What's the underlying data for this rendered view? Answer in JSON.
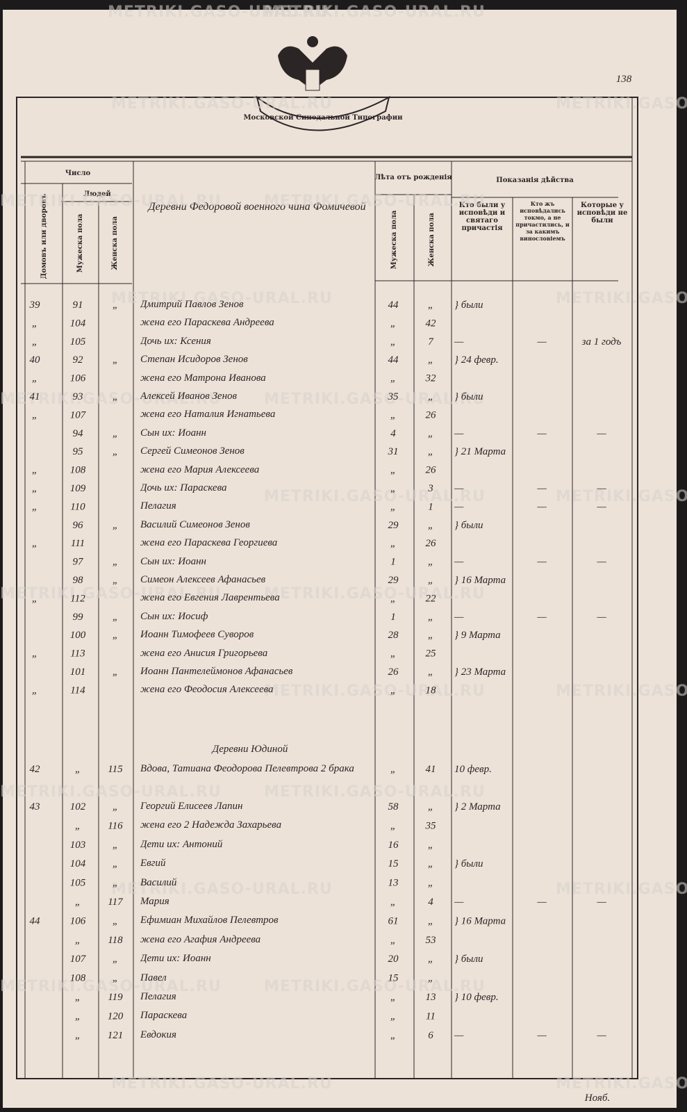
{
  "watermark": "METRIKI.GASO-URAL.RU",
  "page_number": "138",
  "emblem_ribbon": "Московской Синодальной Типографии",
  "header": {
    "number": "Число",
    "households": "Домовъ или дворовъ",
    "people": "Людей",
    "male": "Мужеска пола",
    "female": "Женска пола",
    "age": "Лѣта отъ рожденія",
    "age_male": "Мужеска пола",
    "age_female": "Женска пола",
    "action": "Показанія дѣйства",
    "confessed": "Кто были у исповѣди и святаго причастія",
    "not_communed": "Кто жъ исповѣдались токмо, а не причастились, и за какимъ винословіемъ",
    "absent": "Которые у исповѣди не были"
  },
  "section_title": "Деревни Федоровой военного чина Фомичевой",
  "rows": [
    {
      "no": "39",
      "m": "91",
      "f": "„",
      "name": "Дмитрий Павлов Зенов",
      "m_age": "44",
      "f_age": "„",
      "confessed": "} были"
    },
    {
      "no": "„",
      "m": "104",
      "name": "жена его Параскева Андреева",
      "m_age": "„",
      "f_age": "42"
    },
    {
      "no": "„",
      "m": "105",
      "name": "Дочь их: Ксения",
      "m_age": "„",
      "f_age": "7",
      "confessed": "—",
      "not_communed": "—",
      "absent": "за 1 годъ"
    },
    {
      "no": "40",
      "m": "92",
      "f": "„",
      "name": "Степан Исидоров Зенов",
      "m_age": "44",
      "f_age": "„",
      "confessed": "} 24 февр."
    },
    {
      "no": "„",
      "m": "106",
      "name": "жена его Матрона Иванова",
      "m_age": "„",
      "f_age": "32"
    },
    {
      "no": "41",
      "m": "93",
      "f": "„",
      "name": "Алексей Иванов Зенов",
      "m_age": "35",
      "f_age": "„",
      "confessed": "} были"
    },
    {
      "no": "„",
      "m": "107",
      "name": "жена его Наталия Игнатьева",
      "m_age": "„",
      "f_age": "26"
    },
    {
      "m": "94",
      "f": "„",
      "name": "Сын их: Иоанн",
      "m_age": "4",
      "f_age": "„",
      "confessed": "—",
      "not_communed": "—",
      "absent": "—"
    },
    {
      "m": "95",
      "f": "„",
      "name": "Сергей Симеонов Зенов",
      "m_age": "31",
      "f_age": "„",
      "confessed": "} 21 Марта"
    },
    {
      "no": "„",
      "m": "108",
      "name": "жена его Мария Алексеева",
      "m_age": "„",
      "f_age": "26"
    },
    {
      "no": "„",
      "m": "109",
      "name": "Дочь их: Параскева",
      "m_age": "„",
      "f_age": "3",
      "confessed": "—",
      "not_communed": "—",
      "absent": "—"
    },
    {
      "no": "„",
      "m": "110",
      "name": "Пелагия",
      "m_age": "„",
      "f_age": "1",
      "confessed": "—",
      "not_communed": "—",
      "absent": "—"
    },
    {
      "m": "96",
      "f": "„",
      "name": "Василий Симеонов Зенов",
      "m_age": "29",
      "f_age": "„",
      "confessed": "} были"
    },
    {
      "no": "„",
      "m": "111",
      "name": "жена его Параскева Георгиева",
      "m_age": "„",
      "f_age": "26"
    },
    {
      "m": "97",
      "f": "„",
      "name": "Сын их: Иоанн",
      "m_age": "1",
      "f_age": "„",
      "confessed": "—",
      "not_communed": "—",
      "absent": "—"
    },
    {
      "m": "98",
      "f": "„",
      "name": "Симеон Алексеев Афанасьев",
      "m_age": "29",
      "f_age": "„",
      "confessed": "} 16 Марта"
    },
    {
      "no": "„",
      "m": "112",
      "name": "жена его Евгения Лаврентьева",
      "m_age": "„",
      "f_age": "22"
    },
    {
      "m": "99",
      "f": "„",
      "name": "Сын их: Иосиф",
      "m_age": "1",
      "f_age": "„",
      "confessed": "—",
      "not_communed": "—",
      "absent": "—"
    },
    {
      "m": "100",
      "f": "„",
      "name": "Иоанн Тимофеев Суворов",
      "m_age": "28",
      "f_age": "„",
      "confessed": "} 9 Марта"
    },
    {
      "no": "„",
      "m": "113",
      "name": "жена его Анисия Григорьева",
      "m_age": "„",
      "f_age": "25"
    },
    {
      "m": "101",
      "f": "„",
      "name": "Иоанн Пантелеймонов Афанасьев",
      "m_age": "26",
      "f_age": "„",
      "confessed": "} 23 Марта"
    },
    {
      "no": "„",
      "m": "114",
      "name": "жена его Феодосия Алексеева",
      "m_age": "„",
      "f_age": "18"
    }
  ],
  "section2_title": "Деревни Юдиной",
  "rows2": [
    {
      "no": "42",
      "m": "„",
      "f": "115",
      "name": "Вдова, Татиана Феодорова Пелевтрова 2 брака",
      "m_age": "„",
      "f_age": "41",
      "confessed": "10 февр."
    },
    {
      "no": "43",
      "m": "102",
      "f": "„",
      "name": "Георгий Елисеев Лапин",
      "m_age": "58",
      "f_age": "„",
      "confessed": "} 2 Марта"
    },
    {
      "m": "„",
      "f": "116",
      "name": "жена его 2 Надежда Захарьева",
      "m_age": "„",
      "f_age": "35"
    },
    {
      "m": "103",
      "f": "„",
      "name": "Дети их: Антоний",
      "m_age": "16",
      "f_age": "„"
    },
    {
      "m": "104",
      "f": "„",
      "name": "Евгий",
      "m_age": "15",
      "f_age": "„",
      "confessed": "} были"
    },
    {
      "m": "105",
      "f": "„",
      "name": "Василий",
      "m_age": "13",
      "f_age": "„"
    },
    {
      "m": "„",
      "f": "117",
      "name": "Мария",
      "m_age": "„",
      "f_age": "4",
      "confessed": "—",
      "not_communed": "—",
      "absent": "—"
    },
    {
      "no": "44",
      "m": "106",
      "f": "„",
      "name": "Ефимиан Михайлов Пелевтров",
      "m_age": "61",
      "f_age": "„",
      "confessed": "} 16 Марта"
    },
    {
      "m": "„",
      "f": "118",
      "name": "жена его Агафия Андреева",
      "m_age": "„",
      "f_age": "53"
    },
    {
      "m": "107",
      "f": "„",
      "name": "Дети их: Иоанн",
      "m_age": "20",
      "f_age": "„",
      "confessed": "} были"
    },
    {
      "m": "108",
      "f": "„",
      "name": "Павел",
      "m_age": "15",
      "f_age": "„"
    },
    {
      "m": "„",
      "f": "119",
      "name": "Пелагия",
      "m_age": "„",
      "f_age": "13",
      "confessed": "} 10 февр."
    },
    {
      "m": "„",
      "f": "120",
      "name": "Параскева",
      "m_age": "„",
      "f_age": "11"
    },
    {
      "m": "„",
      "f": "121",
      "name": "Евдокия",
      "m_age": "„",
      "f_age": "6",
      "confessed": "—",
      "not_communed": "—",
      "absent": "—"
    }
  ],
  "footnote": "Нояб."
}
